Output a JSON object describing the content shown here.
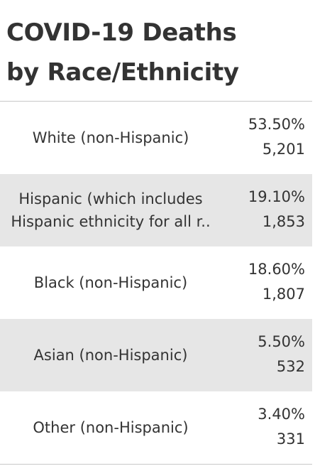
{
  "header": {
    "title": "COVID-19 Deaths by Race/Ethnicity"
  },
  "table": {
    "rows": [
      [
        "White (non-Hispanic)",
        "53.50%",
        "5,201"
      ],
      [
        "Hispanic (which includes Hispanic ethnicity for all r..",
        "19.10%",
        "1,853"
      ],
      [
        "Black (non-Hispanic)",
        "18.60%",
        "1,807"
      ],
      [
        "Asian (non-Hispanic)",
        "5.50%",
        "532"
      ],
      [
        "Other (non-Hispanic)",
        "3.40%",
        "331"
      ]
    ]
  }
}
